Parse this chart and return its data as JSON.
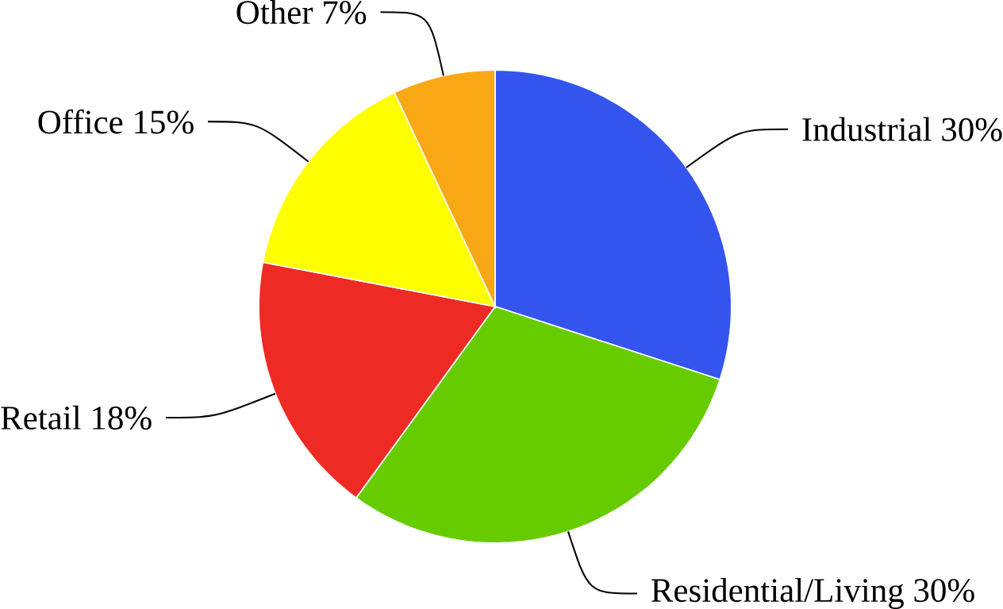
{
  "chart_data": {
    "type": "pie",
    "categories": [
      "Industrial",
      "Residential/Living",
      "Retail",
      "Office",
      "Other"
    ],
    "values": [
      30,
      30,
      18,
      15,
      7
    ],
    "value_labels": [
      "30%",
      "30%",
      "18%",
      "15%",
      "7%"
    ],
    "colors": [
      "#3355ee",
      "#66cc00",
      "#ee2a24",
      "#ffff00",
      "#f9a815"
    ]
  }
}
